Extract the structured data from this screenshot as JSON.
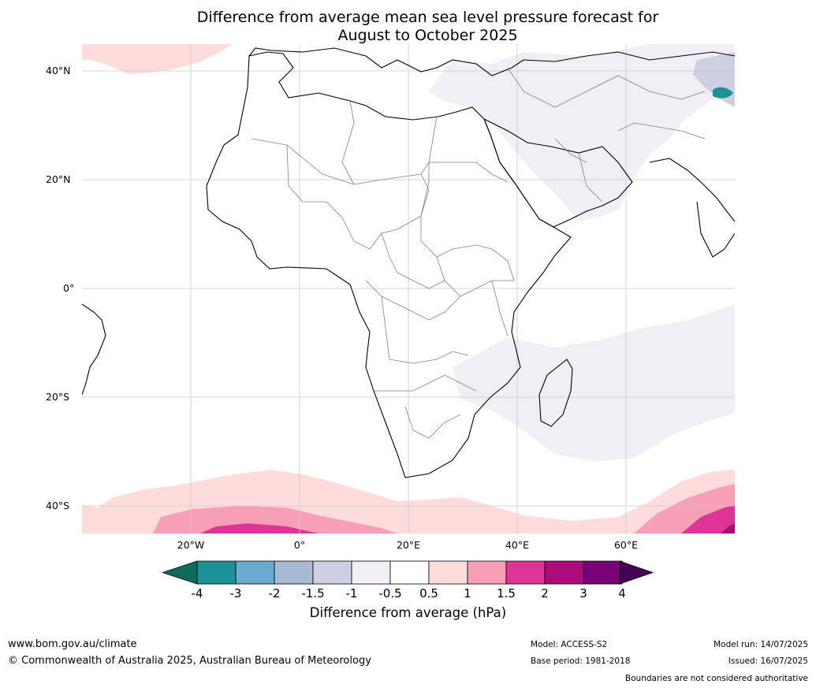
{
  "title": {
    "line1": "Difference from average mean sea level pressure forecast for",
    "line2": "August to October 2025"
  },
  "axes": {
    "lat_labels": [
      "40°N",
      "20°N",
      "0°",
      "20°S",
      "40°S"
    ],
    "lon_labels": [
      "20°W",
      "0°",
      "20°E",
      "40°E",
      "60°E"
    ],
    "grid": true
  },
  "legend": {
    "title": "Difference from average (hPa)",
    "labels": [
      "-4",
      "-3",
      "-2",
      "-1.5",
      "-1",
      "-0.5",
      "0.5",
      "1",
      "1.5",
      "2",
      "3",
      "4"
    ],
    "colors": [
      "#0d6b5c",
      "#1a9298",
      "#6aa9d0",
      "#a6bad6",
      "#cecfe3",
      "#f1eef5",
      "#ffffff",
      "#fddcdb",
      "#f89fb8",
      "#dc3597",
      "#ad0a7c",
      "#7a0077",
      "#440153"
    ]
  },
  "footer": {
    "url": "www.bom.gov.au/climate",
    "copyright": "© Commonwealth of Australia 2025, Australian Bureau of Meteorology",
    "model": "Model: ACCESS-S2",
    "base_period": "Base period: 1981-2018",
    "model_run": "Model run: 14/07/2025",
    "issued": "Issued: 16/07/2025",
    "disclaimer": "Boundaries are not considered authoritative"
  }
}
